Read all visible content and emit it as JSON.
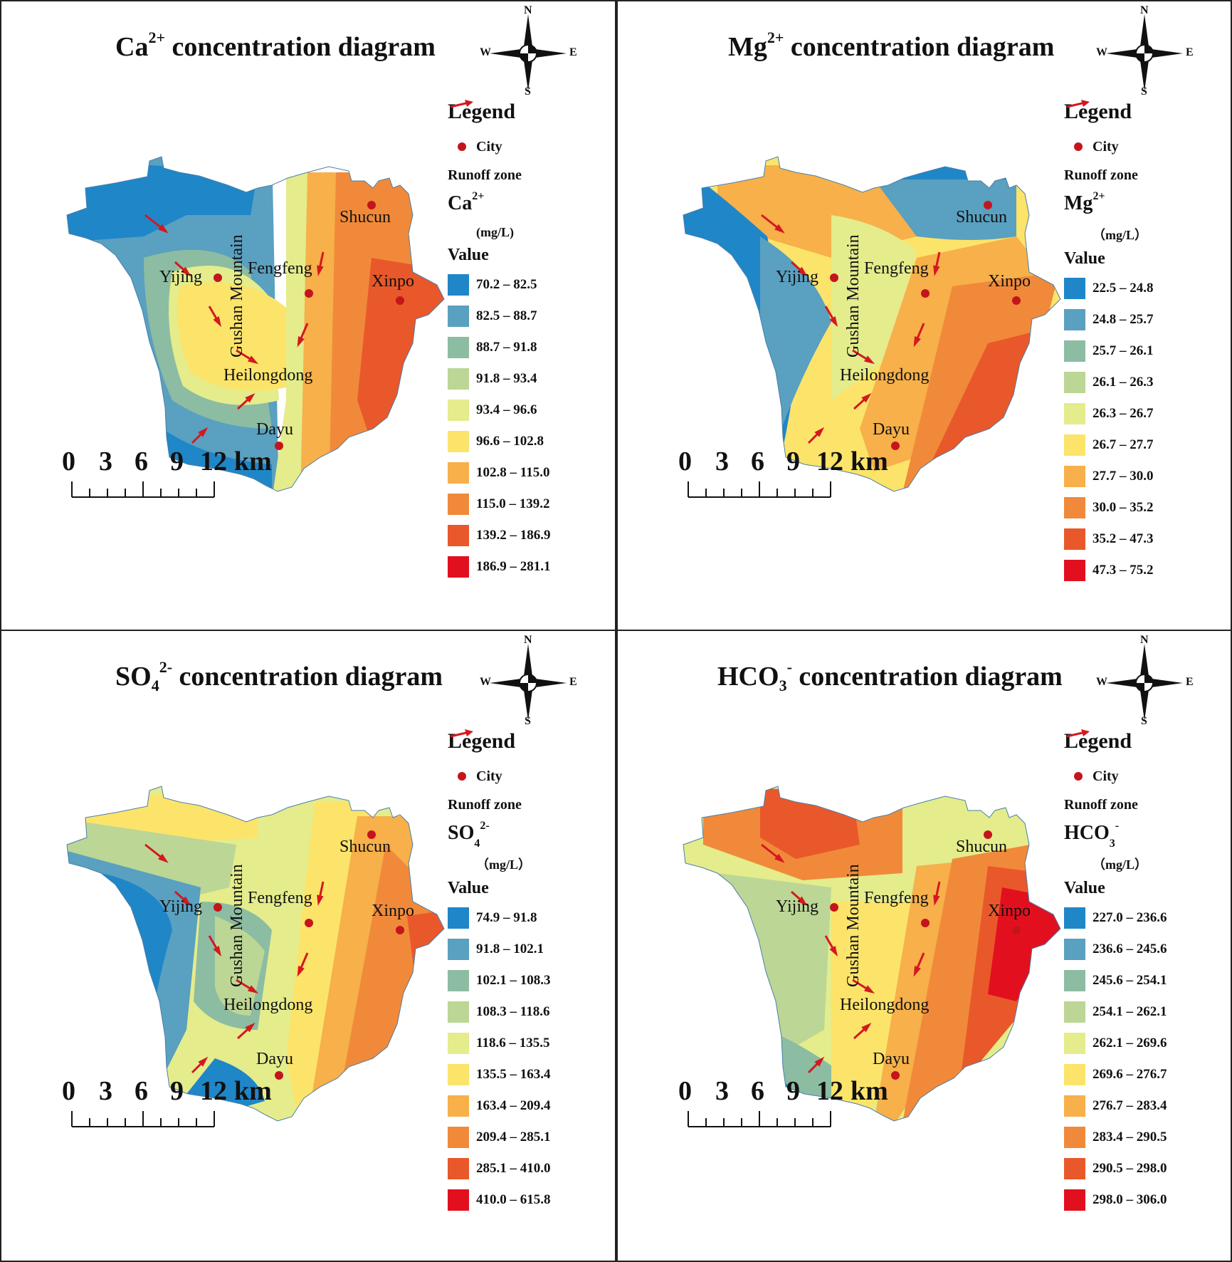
{
  "panels": [
    {
      "ion": "ca",
      "title_main": "Ca",
      "title_sup": "2+",
      "title_sub": "",
      "title_rest": " concentration diagram",
      "ion_main": "Ca",
      "ion_sup": "2+",
      "ion_sub": "",
      "unit": "(mg/L)",
      "classes": [
        "70.2 – 82.5",
        "82.5 – 88.7",
        "88.7 – 91.8",
        "91.8 – 93.4",
        "93.4 – 96.6",
        "96.6 – 102.8",
        "102.8 – 115.0",
        "115.0 – 139.2",
        "139.2 – 186.9",
        "186.9 – 281.1"
      ]
    },
    {
      "ion": "mg",
      "title_main": "Mg",
      "title_sup": "2+",
      "title_sub": "",
      "title_rest": " concentration diagram",
      "ion_main": "Mg",
      "ion_sup": "2+",
      "ion_sub": "",
      "unit": "（mg/L）",
      "classes": [
        "22.5 – 24.8",
        "24.8 – 25.7",
        "25.7 – 26.1",
        "26.1 – 26.3",
        "26.3 – 26.7",
        "26.7 – 27.7",
        "27.7 – 30.0",
        "30.0 – 35.2",
        "35.2 – 47.3",
        "47.3 – 75.2"
      ]
    },
    {
      "ion": "so4",
      "title_main": "SO",
      "title_sup": "2-",
      "title_sub": "4",
      "title_rest": " concentration diagram",
      "ion_main": "SO",
      "ion_sup": "2-",
      "ion_sub": "4",
      "unit": "（mg/L）",
      "classes": [
        "74.9 – 91.8",
        "91.8 – 102.1",
        "102.1 – 108.3",
        "108.3 – 118.6",
        "118.6 – 135.5",
        "135.5 – 163.4",
        "163.4 – 209.4",
        "209.4 – 285.1",
        "285.1 – 410.0",
        "410.0 – 615.8"
      ]
    },
    {
      "ion": "hco3",
      "title_main": "HCO",
      "title_sup": "-",
      "title_sub": "3",
      "title_rest": " concentration diagram",
      "ion_main": "HCO",
      "ion_sup": "-",
      "ion_sub": "3",
      "unit": "（mg/L）",
      "classes": [
        "227.0 – 236.6",
        "236.6 – 245.6",
        "245.6 – 254.1",
        "254.1 – 262.1",
        "262.1 – 269.6",
        "269.6 – 276.7",
        "276.7 – 283.4",
        "283.4 – 290.5",
        "290.5 – 298.0",
        "298.0 – 306.0"
      ]
    }
  ],
  "legend": {
    "title": "Legend",
    "city_label": "City",
    "runoff_label": "Runoff zone",
    "value_title": "Value"
  },
  "compass": {
    "n": "N",
    "s": "S",
    "e": "E",
    "w": "W"
  },
  "scale": {
    "ticks": [
      "0",
      "3",
      "6",
      "9",
      "12"
    ],
    "unit": "km"
  },
  "places": {
    "shucun": "Shucun",
    "yijing": "Yijing",
    "fengfeng": "Fengfeng",
    "xinpo": "Xinpo",
    "heilongdong": "Heilongdong",
    "dayu": "Dayu",
    "mountain": "Gushan Mountain"
  },
  "colors": {
    "ramp": [
      "#1f86c8",
      "#5aa0c0",
      "#8cbca2",
      "#bcd695",
      "#e4ec8c",
      "#fce46a",
      "#f7b04a",
      "#f08a3a",
      "#e9582a",
      "#e2101e"
    ],
    "city": "#c4151c",
    "arrow": "#d41820"
  }
}
